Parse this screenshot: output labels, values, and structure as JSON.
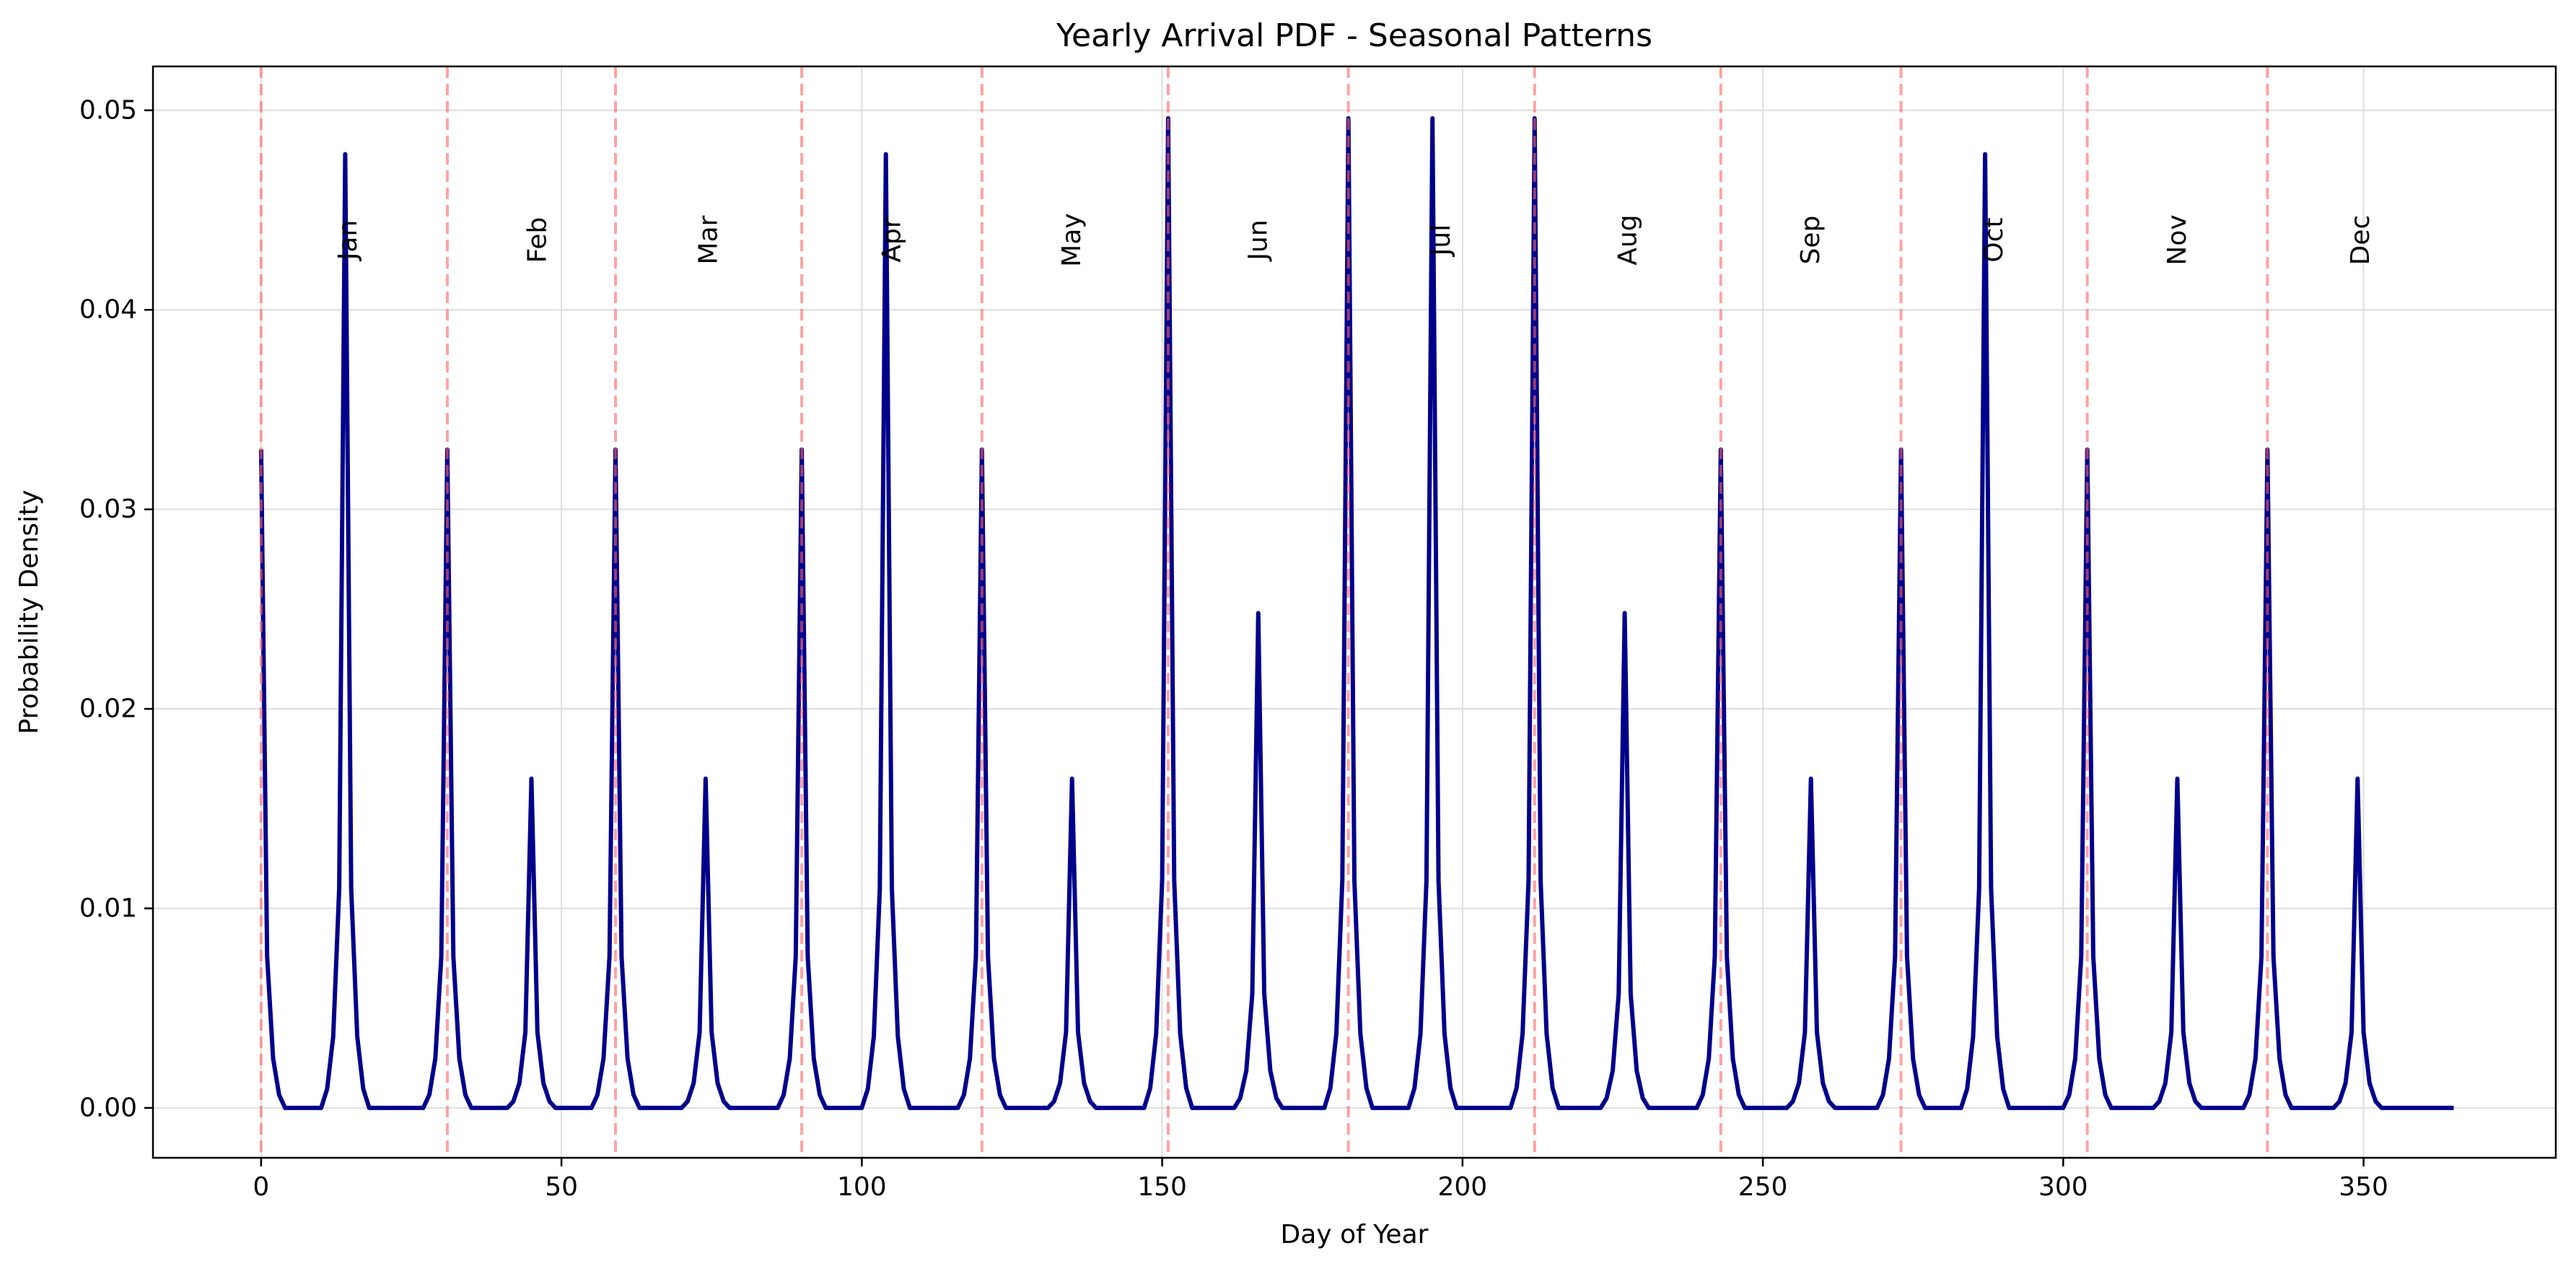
{
  "chart_data": {
    "type": "line",
    "title": "Yearly Arrival PDF - Seasonal Patterns",
    "xlabel": "Day of Year",
    "ylabel": "Probability Density",
    "xlim": [
      -18,
      382
    ],
    "ylim": [
      -0.0025,
      0.0522
    ],
    "xticks": [
      0,
      50,
      100,
      150,
      200,
      250,
      300,
      350
    ],
    "xtick_labels": [
      "0",
      "50",
      "100",
      "150",
      "200",
      "250",
      "300",
      "350"
    ],
    "yticks": [
      0.0,
      0.01,
      0.02,
      0.03,
      0.04,
      0.05
    ],
    "ytick_labels": [
      "0.00",
      "0.01",
      "0.02",
      "0.03",
      "0.04",
      "0.05"
    ],
    "grid": true,
    "line_color": "#00008b",
    "boundary_color": "#ff6666",
    "month_starts": [
      0,
      31,
      59,
      90,
      120,
      151,
      181,
      212,
      243,
      273,
      304,
      334
    ],
    "month_labels": [
      {
        "label": "Jan",
        "x": 14.5
      },
      {
        "label": "Feb",
        "x": 46
      },
      {
        "label": "Mar",
        "x": 74.5
      },
      {
        "label": "Apr",
        "x": 105
      },
      {
        "label": "May",
        "x": 135
      },
      {
        "label": "Jun",
        "x": 166
      },
      {
        "label": "Jul",
        "x": 196.5
      },
      {
        "label": "Aug",
        "x": 227.5
      },
      {
        "label": "Sep",
        "x": 258
      },
      {
        "label": "Oct",
        "x": 288.5
      },
      {
        "label": "Nov",
        "x": 319
      },
      {
        "label": "Dec",
        "x": 349.5
      }
    ],
    "month_label_y": 0.0435,
    "series": [
      {
        "x_start": 0,
        "x_end": 365,
        "peaks": [
          {
            "x": 0,
            "y": 0.033
          },
          {
            "x": 14,
            "y": 0.0478
          },
          {
            "x": 31,
            "y": 0.033
          },
          {
            "x": 45,
            "y": 0.0165
          },
          {
            "x": 59,
            "y": 0.033
          },
          {
            "x": 74,
            "y": 0.0165
          },
          {
            "x": 90,
            "y": 0.033
          },
          {
            "x": 104,
            "y": 0.0478
          },
          {
            "x": 120,
            "y": 0.033
          },
          {
            "x": 135,
            "y": 0.0165
          },
          {
            "x": 151,
            "y": 0.0496
          },
          {
            "x": 166,
            "y": 0.0248
          },
          {
            "x": 181,
            "y": 0.0496
          },
          {
            "x": 195,
            "y": 0.0496
          },
          {
            "x": 212,
            "y": 0.0496
          },
          {
            "x": 227,
            "y": 0.0248
          },
          {
            "x": 243,
            "y": 0.033
          },
          {
            "x": 258,
            "y": 0.0165
          },
          {
            "x": 273,
            "y": 0.033
          },
          {
            "x": 287,
            "y": 0.0478
          },
          {
            "x": 304,
            "y": 0.033
          },
          {
            "x": 319,
            "y": 0.0165
          },
          {
            "x": 334,
            "y": 0.033
          },
          {
            "x": 349,
            "y": 0.0165
          }
        ]
      }
    ]
  }
}
